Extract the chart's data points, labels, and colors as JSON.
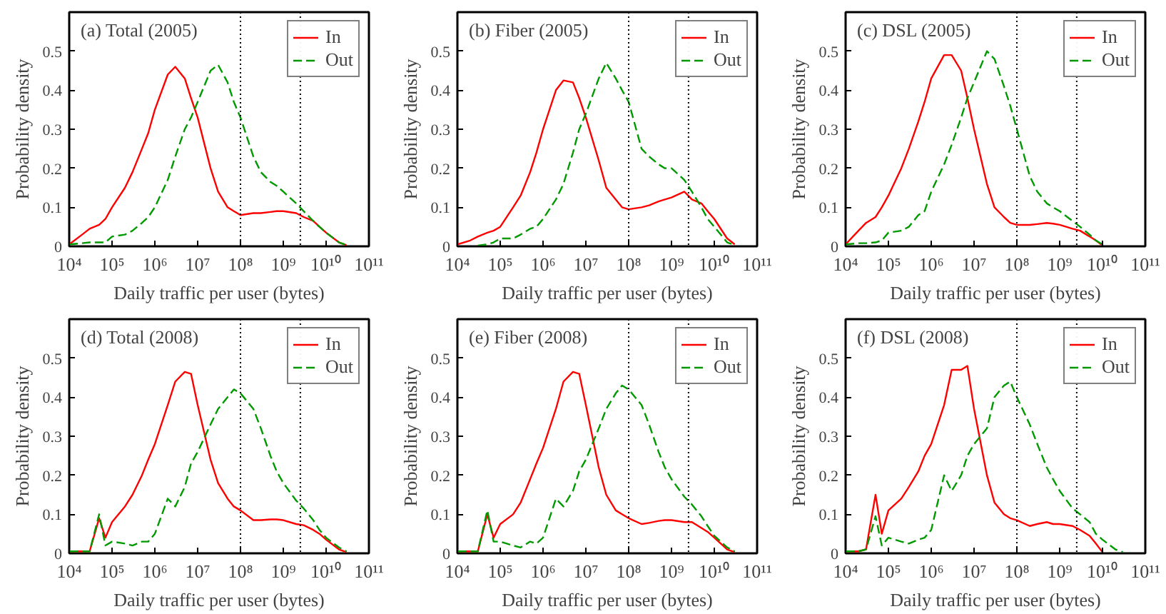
{
  "chart_data": [
    {
      "type": "line",
      "title": "(a) Total (2005)",
      "xlabel": "Daily traffic per user (bytes)",
      "ylabel": "Probability density",
      "log": "x",
      "grid": false,
      "legend": "top right",
      "xlim": [
        10000,
        100000000000
      ],
      "ylim": [
        0,
        0.6
      ],
      "xticks": [
        {
          "value": 10000,
          "label": "10⁴"
        },
        {
          "value": 100000,
          "label": "10⁵"
        },
        {
          "value": 1000000,
          "label": "10⁶"
        },
        {
          "value": 10000000,
          "label": "10⁷"
        },
        {
          "value": 100000000,
          "label": "10⁸"
        },
        {
          "value": 1000000000,
          "label": "10⁹"
        },
        {
          "value": 10000000000,
          "label": "10¹⁰"
        },
        {
          "value": 100000000000,
          "label": "10¹¹"
        }
      ],
      "yticks": [
        0,
        0.1,
        0.2,
        0.3,
        0.4,
        0.5
      ],
      "ref_lines": [
        {
          "axis": "x",
          "value": 100000000,
          "color": "#000000",
          "line_style": "dotted"
        },
        {
          "axis": "x",
          "value": 2500000000,
          "color": "#000000",
          "line_style": "dotted"
        }
      ],
      "x": [
        10000,
        20000,
        30000,
        50000,
        70000,
        100000,
        200000,
        300000,
        500000,
        700000,
        1000000,
        2000000,
        3000000,
        5000000,
        7000000,
        10000000,
        20000000,
        30000000,
        50000000,
        70000000,
        100000000,
        200000000,
        300000000,
        500000000,
        700000000,
        1000000000,
        2000000000,
        3000000000,
        5000000000,
        7000000000,
        10000000000,
        20000000000,
        30000000000
      ],
      "series": [
        {
          "name": "In",
          "color": "#ff0000",
          "line_style": "solid",
          "values": [
            0.005,
            0.03,
            0.045,
            0.055,
            0.07,
            0.1,
            0.15,
            0.19,
            0.25,
            0.29,
            0.35,
            0.44,
            0.46,
            0.43,
            0.38,
            0.33,
            0.2,
            0.14,
            0.1,
            0.09,
            0.08,
            0.085,
            0.085,
            0.088,
            0.09,
            0.09,
            0.085,
            0.075,
            0.065,
            0.05,
            0.035,
            0.01,
            0.003
          ]
        },
        {
          "name": "Out",
          "color": "#009900",
          "line_style": "dashed",
          "values": [
            0.005,
            0.008,
            0.01,
            0.01,
            0.01,
            0.025,
            0.03,
            0.04,
            0.06,
            0.075,
            0.1,
            0.17,
            0.23,
            0.3,
            0.33,
            0.37,
            0.45,
            0.465,
            0.42,
            0.37,
            0.33,
            0.23,
            0.19,
            0.165,
            0.155,
            0.14,
            0.11,
            0.09,
            0.065,
            0.05,
            0.035,
            0.01,
            0.003
          ]
        }
      ]
    },
    {
      "type": "line",
      "title": "(b) Fiber (2005)",
      "xlabel": "Daily traffic per user (bytes)",
      "ylabel": "Probability density",
      "log": "x",
      "grid": false,
      "legend": "top right",
      "xlim": [
        10000,
        100000000000
      ],
      "ylim": [
        0,
        0.6
      ],
      "xticks": [
        {
          "value": 10000,
          "label": "10⁴"
        },
        {
          "value": 100000,
          "label": "10⁵"
        },
        {
          "value": 1000000,
          "label": "10⁶"
        },
        {
          "value": 10000000,
          "label": "10⁷"
        },
        {
          "value": 100000000,
          "label": "10⁸"
        },
        {
          "value": 1000000000,
          "label": "10⁹"
        },
        {
          "value": 10000000000,
          "label": "10¹⁰"
        },
        {
          "value": 100000000000,
          "label": "10¹¹"
        }
      ],
      "yticks": [
        0,
        0.1,
        0.2,
        0.3,
        0.4,
        0.5
      ],
      "ref_lines": [
        {
          "axis": "x",
          "value": 100000000,
          "color": "#000000",
          "line_style": "dotted"
        },
        {
          "axis": "x",
          "value": 2500000000,
          "color": "#000000",
          "line_style": "dotted"
        }
      ],
      "x": [
        10000,
        20000,
        30000,
        50000,
        70000,
        100000,
        200000,
        300000,
        500000,
        700000,
        1000000,
        2000000,
        3000000,
        5000000,
        7000000,
        10000000,
        20000000,
        30000000,
        50000000,
        70000000,
        100000000,
        200000000,
        300000000,
        500000000,
        700000000,
        1000000000,
        2000000000,
        3000000000,
        5000000000,
        7000000000,
        10000000000,
        20000000000,
        30000000000
      ],
      "series": [
        {
          "name": "In",
          "color": "#ff0000",
          "line_style": "solid",
          "values": [
            0.005,
            0.015,
            0.025,
            0.035,
            0.04,
            0.05,
            0.1,
            0.13,
            0.19,
            0.24,
            0.3,
            0.4,
            0.425,
            0.42,
            0.38,
            0.33,
            0.22,
            0.15,
            0.12,
            0.1,
            0.095,
            0.1,
            0.105,
            0.115,
            0.12,
            0.125,
            0.14,
            0.12,
            0.11,
            0.09,
            0.07,
            0.02,
            0.005
          ]
        },
        {
          "name": "Out",
          "color": "#009900",
          "line_style": "dashed",
          "values": [
            null,
            null,
            0.002,
            0.005,
            0.01,
            0.02,
            0.02,
            0.03,
            0.045,
            0.05,
            0.07,
            0.12,
            0.16,
            0.24,
            0.3,
            0.34,
            0.43,
            0.47,
            0.43,
            0.4,
            0.37,
            0.25,
            0.23,
            0.21,
            0.2,
            0.2,
            0.17,
            0.14,
            0.1,
            0.07,
            0.05,
            0.01,
            0.003
          ]
        }
      ]
    },
    {
      "type": "line",
      "title": "(c) DSL (2005)",
      "xlabel": "Daily traffic per user (bytes)",
      "ylabel": "Probability density",
      "log": "x",
      "grid": false,
      "legend": "top right",
      "xlim": [
        10000,
        100000000000
      ],
      "ylim": [
        0,
        0.6
      ],
      "xticks": [
        {
          "value": 10000,
          "label": "10⁴"
        },
        {
          "value": 100000,
          "label": "10⁵"
        },
        {
          "value": 1000000,
          "label": "10⁶"
        },
        {
          "value": 10000000,
          "label": "10⁷"
        },
        {
          "value": 100000000,
          "label": "10⁸"
        },
        {
          "value": 1000000000,
          "label": "10⁹"
        },
        {
          "value": 10000000000,
          "label": "10¹⁰"
        },
        {
          "value": 100000000000,
          "label": "10¹¹"
        }
      ],
      "yticks": [
        0,
        0.1,
        0.2,
        0.3,
        0.4,
        0.5
      ],
      "ref_lines": [
        {
          "axis": "x",
          "value": 100000000,
          "color": "#000000",
          "line_style": "dotted"
        },
        {
          "axis": "x",
          "value": 2500000000,
          "color": "#000000",
          "line_style": "dotted"
        }
      ],
      "x": [
        10000,
        20000,
        30000,
        50000,
        70000,
        100000,
        200000,
        300000,
        500000,
        700000,
        1000000,
        2000000,
        3000000,
        5000000,
        7000000,
        10000000,
        20000000,
        30000000,
        50000000,
        70000000,
        100000000,
        200000000,
        300000000,
        500000000,
        700000000,
        1000000000,
        2000000000,
        3000000000,
        5000000000,
        7000000000,
        10000000000
      ],
      "series": [
        {
          "name": "In",
          "color": "#ff0000",
          "line_style": "solid",
          "values": [
            0.005,
            0.04,
            0.06,
            0.075,
            0.1,
            0.13,
            0.2,
            0.25,
            0.32,
            0.37,
            0.43,
            0.49,
            0.49,
            0.45,
            0.38,
            0.3,
            0.16,
            0.1,
            0.075,
            0.06,
            0.055,
            0.055,
            0.057,
            0.06,
            0.058,
            0.055,
            0.045,
            0.04,
            0.025,
            0.015,
            0.002
          ]
        },
        {
          "name": "Out",
          "color": "#009900",
          "line_style": "dashed",
          "values": [
            0.005,
            0.008,
            0.008,
            0.01,
            0.015,
            0.035,
            0.04,
            0.05,
            0.08,
            0.09,
            0.14,
            0.21,
            0.26,
            0.33,
            0.38,
            0.42,
            0.5,
            0.48,
            0.41,
            0.36,
            0.3,
            0.18,
            0.14,
            0.11,
            0.1,
            0.09,
            0.065,
            0.05,
            0.03,
            0.015,
            0.005
          ]
        }
      ]
    },
    {
      "type": "line",
      "title": "(d) Total (2008)",
      "xlabel": "Daily traffic per user (bytes)",
      "ylabel": "Probability density",
      "log": "x",
      "grid": false,
      "legend": "top right",
      "xlim": [
        10000,
        100000000000
      ],
      "ylim": [
        0,
        0.6
      ],
      "xticks": [
        {
          "value": 10000,
          "label": "10⁴"
        },
        {
          "value": 100000,
          "label": "10⁵"
        },
        {
          "value": 1000000,
          "label": "10⁶"
        },
        {
          "value": 10000000,
          "label": "10⁷"
        },
        {
          "value": 100000000,
          "label": "10⁸"
        },
        {
          "value": 1000000000,
          "label": "10⁹"
        },
        {
          "value": 10000000000,
          "label": "10¹⁰"
        },
        {
          "value": 100000000000,
          "label": "10¹¹"
        }
      ],
      "yticks": [
        0,
        0.1,
        0.2,
        0.3,
        0.4,
        0.5
      ],
      "ref_lines": [
        {
          "axis": "x",
          "value": 100000000,
          "color": "#000000",
          "line_style": "dotted"
        },
        {
          "axis": "x",
          "value": 2500000000,
          "color": "#000000",
          "line_style": "dotted"
        }
      ],
      "x": [
        10000,
        20000,
        30000,
        50000,
        70000,
        100000,
        200000,
        300000,
        500000,
        700000,
        1000000,
        2000000,
        3000000,
        5000000,
        7000000,
        10000000,
        20000000,
        30000000,
        50000000,
        70000000,
        100000000,
        200000000,
        300000000,
        500000000,
        700000000,
        1000000000,
        2000000000,
        3000000000,
        5000000000,
        7000000000,
        10000000000,
        20000000000,
        30000000000
      ],
      "series": [
        {
          "name": "In",
          "color": "#ff0000",
          "line_style": "solid",
          "values": [
            0.005,
            0.005,
            0.005,
            0.09,
            0.04,
            0.08,
            0.12,
            0.15,
            0.2,
            0.24,
            0.28,
            0.38,
            0.44,
            0.465,
            0.46,
            0.38,
            0.24,
            0.18,
            0.14,
            0.12,
            0.11,
            0.085,
            0.085,
            0.087,
            0.087,
            0.085,
            0.075,
            0.072,
            0.06,
            0.05,
            0.035,
            0.01,
            0.003
          ]
        },
        {
          "name": "Out",
          "color": "#009900",
          "line_style": "dashed",
          "values": [
            0.005,
            0.005,
            0.005,
            0.1,
            0.02,
            0.03,
            0.025,
            0.02,
            0.03,
            0.03,
            0.05,
            0.14,
            0.12,
            0.17,
            0.23,
            0.26,
            0.33,
            0.37,
            0.4,
            0.42,
            0.41,
            0.37,
            0.32,
            0.25,
            0.21,
            0.18,
            0.135,
            0.115,
            0.085,
            0.06,
            0.04,
            0.015,
            0.005
          ]
        }
      ]
    },
    {
      "type": "line",
      "title": "(e) Fiber (2008)",
      "xlabel": "Daily traffic per user (bytes)",
      "ylabel": "Probability density",
      "log": "x",
      "grid": false,
      "legend": "top right",
      "xlim": [
        10000,
        100000000000
      ],
      "ylim": [
        0,
        0.6
      ],
      "xticks": [
        {
          "value": 10000,
          "label": "10⁴"
        },
        {
          "value": 100000,
          "label": "10⁵"
        },
        {
          "value": 1000000,
          "label": "10⁶"
        },
        {
          "value": 10000000,
          "label": "10⁷"
        },
        {
          "value": 100000000,
          "label": "10⁸"
        },
        {
          "value": 1000000000,
          "label": "10⁹"
        },
        {
          "value": 10000000000,
          "label": "10¹⁰"
        },
        {
          "value": 100000000000,
          "label": "10¹¹"
        }
      ],
      "yticks": [
        0,
        0.1,
        0.2,
        0.3,
        0.4,
        0.5
      ],
      "ref_lines": [
        {
          "axis": "x",
          "value": 100000000,
          "color": "#000000",
          "line_style": "dotted"
        },
        {
          "axis": "x",
          "value": 2500000000,
          "color": "#000000",
          "line_style": "dotted"
        }
      ],
      "x": [
        10000,
        20000,
        30000,
        50000,
        70000,
        100000,
        200000,
        300000,
        500000,
        700000,
        1000000,
        2000000,
        3000000,
        5000000,
        7000000,
        10000000,
        20000000,
        30000000,
        50000000,
        70000000,
        100000000,
        200000000,
        300000000,
        500000000,
        700000000,
        1000000000,
        2000000000,
        3000000000,
        5000000000,
        7000000000,
        10000000000,
        20000000000,
        30000000000
      ],
      "series": [
        {
          "name": "In",
          "color": "#ff0000",
          "line_style": "solid",
          "values": [
            0.005,
            0.005,
            0.005,
            0.1,
            0.04,
            0.075,
            0.1,
            0.13,
            0.19,
            0.23,
            0.27,
            0.37,
            0.44,
            0.465,
            0.46,
            0.38,
            0.22,
            0.15,
            0.11,
            0.1,
            0.09,
            0.075,
            0.078,
            0.083,
            0.085,
            0.085,
            0.08,
            0.08,
            0.065,
            0.055,
            0.04,
            0.01,
            0.003
          ]
        },
        {
          "name": "Out",
          "color": "#009900",
          "line_style": "dashed",
          "values": [
            0.005,
            0.005,
            0.005,
            0.11,
            0.03,
            0.03,
            0.02,
            0.015,
            0.03,
            0.025,
            0.04,
            0.14,
            0.12,
            0.16,
            0.21,
            0.24,
            0.32,
            0.37,
            0.41,
            0.43,
            0.42,
            0.38,
            0.33,
            0.26,
            0.22,
            0.19,
            0.145,
            0.125,
            0.095,
            0.07,
            0.045,
            0.015,
            0.005
          ]
        }
      ]
    },
    {
      "type": "line",
      "title": "(f) DSL (2008)",
      "xlabel": "Daily traffic per user (bytes)",
      "ylabel": "Probability density",
      "log": "x",
      "grid": false,
      "legend": "top right",
      "xlim": [
        10000,
        100000000000
      ],
      "ylim": [
        0,
        0.6
      ],
      "xticks": [
        {
          "value": 10000,
          "label": "10⁴"
        },
        {
          "value": 100000,
          "label": "10⁵"
        },
        {
          "value": 1000000,
          "label": "10⁶"
        },
        {
          "value": 10000000,
          "label": "10⁷"
        },
        {
          "value": 100000000,
          "label": "10⁸"
        },
        {
          "value": 1000000000,
          "label": "10⁹"
        },
        {
          "value": 10000000000,
          "label": "10¹⁰"
        },
        {
          "value": 100000000000,
          "label": "10¹¹"
        }
      ],
      "yticks": [
        0,
        0.1,
        0.2,
        0.3,
        0.4,
        0.5
      ],
      "ref_lines": [
        {
          "axis": "x",
          "value": 100000000,
          "color": "#000000",
          "line_style": "dotted"
        },
        {
          "axis": "x",
          "value": 2500000000,
          "color": "#000000",
          "line_style": "dotted"
        }
      ],
      "x": [
        10000,
        20000,
        30000,
        50000,
        70000,
        100000,
        200000,
        300000,
        500000,
        700000,
        1000000,
        2000000,
        3000000,
        5000000,
        7000000,
        10000000,
        20000000,
        30000000,
        50000000,
        70000000,
        100000000,
        200000000,
        300000000,
        500000000,
        700000000,
        1000000000,
        2000000000,
        3000000000,
        5000000000,
        7000000000,
        10000000000,
        20000000000,
        30000000000
      ],
      "series": [
        {
          "name": "In",
          "color": "#ff0000",
          "line_style": "solid",
          "values": [
            0.005,
            0.005,
            0.01,
            0.15,
            0.05,
            0.11,
            0.14,
            0.17,
            0.21,
            0.25,
            0.28,
            0.38,
            0.47,
            0.47,
            0.48,
            0.37,
            0.2,
            0.13,
            0.1,
            0.09,
            0.085,
            0.07,
            0.075,
            0.08,
            0.075,
            0.075,
            0.07,
            0.06,
            0.045,
            0.025,
            0.003,
            null,
            null
          ]
        },
        {
          "name": "Out",
          "color": "#009900",
          "line_style": "dashed",
          "values": [
            0.005,
            0.005,
            0.01,
            0.095,
            0.02,
            0.04,
            0.03,
            0.025,
            0.035,
            0.04,
            0.06,
            0.2,
            0.16,
            0.2,
            0.25,
            0.28,
            0.32,
            0.4,
            0.43,
            0.44,
            0.4,
            0.33,
            0.28,
            0.22,
            0.19,
            0.16,
            0.115,
            0.1,
            0.08,
            0.05,
            0.035,
            0.01,
            0.003
          ]
        }
      ]
    }
  ]
}
